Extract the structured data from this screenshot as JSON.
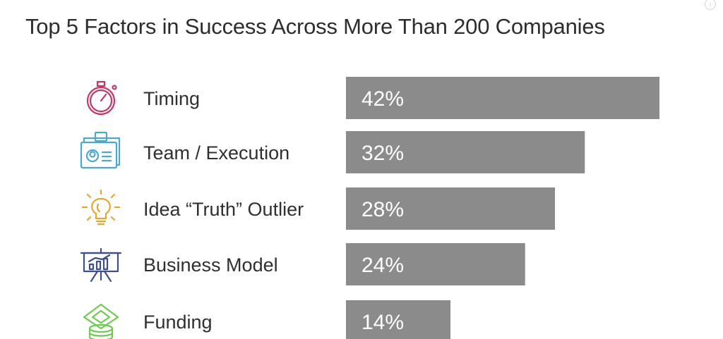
{
  "colors": {
    "bar": "#8b8b8b",
    "bar_text": "#ffffff",
    "label_text": "#2f2f2f",
    "title_text": "#2d2d2d"
  },
  "chart_data": {
    "type": "bar",
    "orientation": "horizontal",
    "title": "Top 5 Factors in Success Across More Than 200 Companies",
    "categories": [
      "Timing",
      "Team / Execution",
      "Idea “Truth” Outlier",
      "Business Model",
      "Funding"
    ],
    "values": [
      42,
      32,
      28,
      24,
      14
    ],
    "value_labels": [
      "42%",
      "32%",
      "28%",
      "24%",
      "14%"
    ],
    "unit": "%",
    "xlim": [
      0,
      42
    ],
    "grid": false,
    "legend": "none",
    "icons": [
      {
        "name": "stopwatch-icon",
        "color": "#c8356a"
      },
      {
        "name": "id-badge-icon",
        "color": "#4aa8d8"
      },
      {
        "name": "lightbulb-icon",
        "color": "#e2a92b"
      },
      {
        "name": "presentation-chart-icon",
        "color": "#3f4f8c"
      },
      {
        "name": "money-stack-icon",
        "color": "#6ccc4c"
      }
    ]
  }
}
